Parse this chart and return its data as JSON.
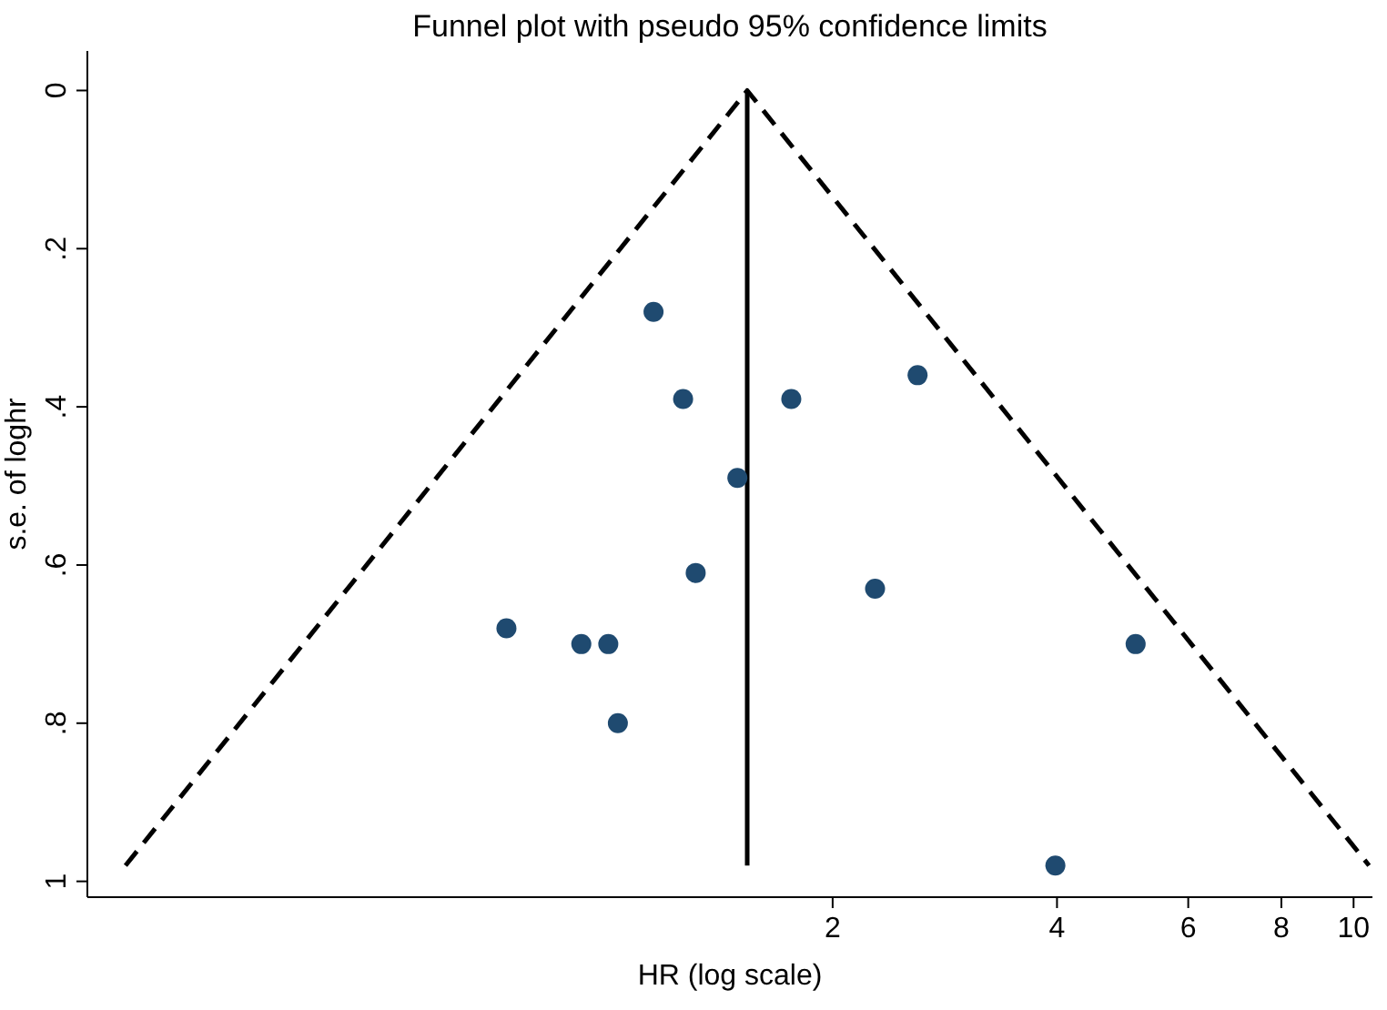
{
  "chart_data": {
    "type": "scatter",
    "title": "Funnel plot with pseudo 95% confidence limits",
    "xlabel": "HR (log scale)",
    "ylabel": "s.e. of loghr",
    "log": "x",
    "xlim": [
      0.2,
      10.6
    ],
    "xticks": [
      2,
      4,
      6,
      8,
      10
    ],
    "ylim": [
      1.02,
      -0.05
    ],
    "yticks": [
      {
        "value": 0,
        "label": "0"
      },
      {
        "value": 0.2,
        "label": ".2"
      },
      {
        "value": 0.4,
        "label": ".4"
      },
      {
        "value": 0.6,
        "label": ".6"
      },
      {
        "value": 0.8,
        "label": ".8"
      },
      {
        "value": 1,
        "label": "1"
      }
    ],
    "grid": false,
    "series": [
      {
        "color": "#1f4a70",
        "marker": "circle",
        "x": [
          1.15,
          1.26,
          1.76,
          2.6,
          1.49,
          1.31,
          2.28,
          0.73,
          0.92,
          1.0,
          5.1,
          1.03,
          3.98
        ],
        "values": [
          0.28,
          0.39,
          0.39,
          0.36,
          0.49,
          0.61,
          0.63,
          0.68,
          0.7,
          0.7,
          0.7,
          0.8,
          0.98
        ]
      },
      {
        "type": "line",
        "color": "#000000",
        "line_style": "dashed",
        "marker": "none",
        "x": [
          0.225,
          1.536,
          10.49
        ],
        "values": [
          0.98,
          0,
          0.98
        ]
      },
      {
        "type": "line",
        "color": "#000000",
        "line_style": "solid",
        "marker": "none",
        "x": [
          1.536,
          1.536
        ],
        "values": [
          0,
          0.98
        ]
      }
    ]
  }
}
